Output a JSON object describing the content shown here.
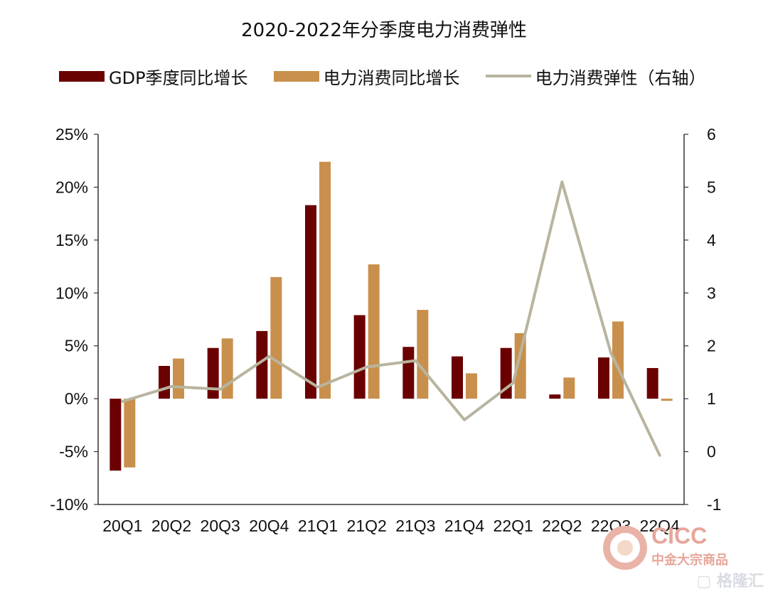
{
  "chart_data": {
    "type": "bar",
    "title": "2020-2022年分季度电力消费弹性",
    "categories": [
      "20Q1",
      "20Q2",
      "20Q3",
      "20Q4",
      "21Q1",
      "21Q2",
      "21Q3",
      "21Q4",
      "22Q1",
      "22Q2",
      "22Q3",
      "22Q4"
    ],
    "series": [
      {
        "name": "GDP季度同比增长",
        "type": "bar",
        "axis": "left",
        "color": "#6b0000",
        "values": [
          -6.8,
          3.1,
          4.8,
          6.4,
          18.3,
          7.9,
          4.9,
          4.0,
          4.8,
          0.4,
          3.9,
          2.9
        ]
      },
      {
        "name": "电力消费同比增长",
        "type": "bar",
        "axis": "left",
        "color": "#c8904c",
        "values": [
          -6.5,
          3.8,
          5.7,
          11.5,
          22.4,
          12.7,
          8.4,
          2.4,
          6.2,
          2.0,
          7.3,
          -0.2
        ]
      },
      {
        "name": "电力消费弹性（右轴）",
        "type": "line",
        "axis": "right",
        "color": "#b8b49f",
        "values": [
          0.95,
          1.23,
          1.18,
          1.8,
          1.22,
          1.6,
          1.72,
          0.6,
          1.3,
          5.1,
          1.87,
          -0.07
        ]
      }
    ],
    "y_left": {
      "min": -10,
      "max": 25,
      "ticks": [
        -10,
        -5,
        0,
        5,
        10,
        15,
        20,
        25
      ],
      "tick_labels": [
        "-10%",
        "-5%",
        "0%",
        "5%",
        "10%",
        "15%",
        "20%",
        "25%"
      ]
    },
    "y_right": {
      "min": -1,
      "max": 6,
      "ticks": [
        -1,
        0,
        1,
        2,
        3,
        4,
        5,
        6
      ],
      "tick_labels": [
        "-1",
        "0",
        "1",
        "2",
        "3",
        "4",
        "5",
        "6"
      ]
    },
    "grid": false,
    "legend_position": "top"
  },
  "branding": {
    "logo_text": "CICC",
    "logo_sub": "中金大宗商品",
    "watermark": "格隆汇",
    "watermark_icon": "G-icon"
  }
}
